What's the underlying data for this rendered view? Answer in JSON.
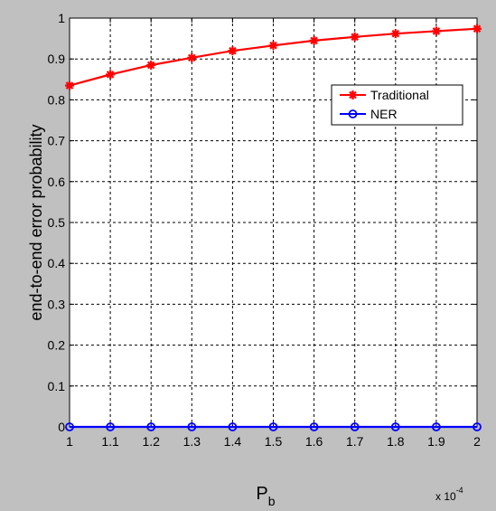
{
  "chart_data": {
    "type": "line",
    "xlabel_main": "P",
    "xlabel_sub": "b",
    "ylabel": "end-to-end error probability",
    "x_multiplier_base": "x 10",
    "x_multiplier_exp": "-4",
    "xlim": [
      1,
      2
    ],
    "ylim": [
      0,
      1
    ],
    "x_ticks": [
      1,
      1.1,
      1.2,
      1.3,
      1.4,
      1.5,
      1.6,
      1.7,
      1.8,
      1.9,
      2
    ],
    "x_tick_labels": [
      "1",
      "1.1",
      "1.2",
      "1.3",
      "1.4",
      "1.5",
      "1.6",
      "1.7",
      "1.8",
      "1.9",
      "2"
    ],
    "y_ticks": [
      0,
      0.1,
      0.2,
      0.3,
      0.4,
      0.5,
      0.6,
      0.7,
      0.8,
      0.9,
      1
    ],
    "y_tick_labels": [
      "0",
      "0.1",
      "0.2",
      "0.3",
      "0.4",
      "0.5",
      "0.6",
      "0.7",
      "0.8",
      "0.9",
      "1"
    ],
    "grid": true,
    "legend_position": "top-right",
    "x": [
      1,
      1.1,
      1.2,
      1.3,
      1.4,
      1.5,
      1.6,
      1.7,
      1.8,
      1.9,
      2
    ],
    "series": [
      {
        "name": "Traditional",
        "color": "#ff0000",
        "marker": "asterisk",
        "values": [
          0.835,
          0.862,
          0.885,
          0.903,
          0.92,
          0.933,
          0.945,
          0.954,
          0.962,
          0.968,
          0.974
        ]
      },
      {
        "name": "NER",
        "color": "#0000ff",
        "marker": "circle",
        "values": [
          0,
          0,
          0,
          0,
          0,
          0,
          0,
          0,
          0,
          0,
          0
        ]
      }
    ]
  }
}
